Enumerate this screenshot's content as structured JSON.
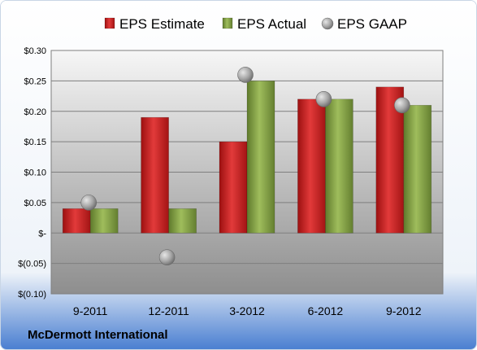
{
  "chart_data": {
    "type": "bar",
    "title": "",
    "xlabel": "",
    "ylabel": "",
    "categories": [
      "9-2011",
      "12-2011",
      "3-2012",
      "6-2012",
      "9-2012"
    ],
    "series": [
      {
        "name": "EPS Estimate",
        "kind": "bar",
        "color": "#cc1f1f",
        "values": [
          0.04,
          0.19,
          0.15,
          0.22,
          0.24
        ]
      },
      {
        "name": "EPS Actual",
        "kind": "bar",
        "color": "#8aa84a",
        "values": [
          0.04,
          0.04,
          0.25,
          0.22,
          0.21
        ]
      },
      {
        "name": "EPS GAAP",
        "kind": "marker",
        "color": "#9a9a9a",
        "values": [
          0.05,
          -0.04,
          0.26,
          0.22,
          0.21
        ]
      }
    ],
    "ylim": [
      -0.1,
      0.3
    ],
    "y_ticks": [
      0.3,
      0.25,
      0.2,
      0.15,
      0.1,
      0.05,
      0,
      -0.05,
      -0.1
    ],
    "y_tick_labels": [
      "$0.30",
      "$0.25",
      "$0.20",
      "$0.15",
      "$0.10",
      "$0.05",
      "$-",
      "$(0.05)",
      "$(0.10)"
    ],
    "grid": true,
    "legend_position": "top"
  },
  "footer": {
    "company": "McDermott International"
  }
}
